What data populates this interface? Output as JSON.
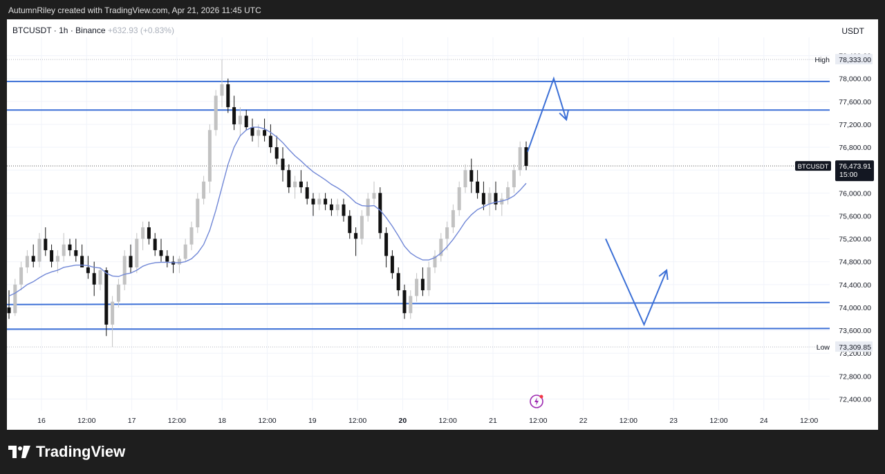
{
  "header": {
    "attribution": "AutumnRiley created with TradingView.com, Apr 21, 2026 11:45 UTC"
  },
  "legend": {
    "symbol": "BTCUSDT",
    "interval": "1h",
    "exchange": "Binance",
    "change": "+632.93 (+0.83%)"
  },
  "footer": {
    "brand": "TradingView"
  },
  "chart_data": {
    "type": "candlestick",
    "symbol": "BTCUSDT",
    "unit": "USDT",
    "ylim": [
      72200,
      78600
    ],
    "y_ticks": [
      "78,400.00",
      "78,000.00",
      "77,600.00",
      "77,200.00",
      "76,800.00",
      "76,400.00",
      "76,000.00",
      "75,600.00",
      "75,200.00",
      "74,800.00",
      "74,400.00",
      "74,000.00",
      "73,600.00",
      "73,200.00",
      "72,800.00",
      "72,400.00"
    ],
    "x_ticks": [
      {
        "label": "16",
        "bold": false
      },
      {
        "label": "12:00",
        "bold": false
      },
      {
        "label": "17",
        "bold": false
      },
      {
        "label": "12:00",
        "bold": false
      },
      {
        "label": "18",
        "bold": false
      },
      {
        "label": "12:00",
        "bold": false
      },
      {
        "label": "19",
        "bold": false
      },
      {
        "label": "12:00",
        "bold": false
      },
      {
        "label": "20",
        "bold": true
      },
      {
        "label": "12:00",
        "bold": false
      },
      {
        "label": "21",
        "bold": false
      },
      {
        "label": "12:00",
        "bold": false
      },
      {
        "label": "22",
        "bold": false
      },
      {
        "label": "12:00",
        "bold": false
      },
      {
        "label": "23",
        "bold": false
      },
      {
        "label": "12:00",
        "bold": false
      },
      {
        "label": "24",
        "bold": false
      },
      {
        "label": "12:00",
        "bold": false
      }
    ],
    "high": {
      "label": "High",
      "value": "78,333.00"
    },
    "low": {
      "label": "Low",
      "value": "73,309.85"
    },
    "last_price": {
      "symbol": "BTCUSDT",
      "value": "76,473.91",
      "countdown": "15:00"
    },
    "horizontal_levels": [
      77950,
      77450,
      74050,
      73620
    ],
    "projection_up": [
      [
        76720,
        0
      ],
      [
        78000,
        0.58
      ],
      [
        77280,
        0.86
      ]
    ],
    "projection_down": [
      [
        75200,
        0
      ],
      [
        73700,
        0.85
      ],
      [
        74650,
        1.35
      ]
    ],
    "colors": {
      "line": "#3b6fd6",
      "ma": "#6f86d6",
      "bull": "#c2c2c2",
      "bear": "#111111",
      "grid": "#f0f3fa"
    },
    "candles": [
      [
        74000,
        74300,
        73800,
        73900
      ],
      [
        73900,
        74500,
        73850,
        74400
      ],
      [
        74400,
        74800,
        74300,
        74700
      ],
      [
        74700,
        75000,
        74600,
        74900
      ],
      [
        74900,
        75100,
        74700,
        74800
      ],
      [
        74800,
        75300,
        74700,
        75200
      ],
      [
        75200,
        75400,
        74900,
        75000
      ],
      [
        75000,
        75100,
        74700,
        74800
      ],
      [
        74800,
        75000,
        74600,
        74900
      ],
      [
        74900,
        75300,
        74800,
        75100
      ],
      [
        75100,
        75200,
        74900,
        75000
      ],
      [
        75000,
        75200,
        74800,
        74900
      ],
      [
        74900,
        75100,
        74700,
        74700
      ],
      [
        74700,
        74900,
        74500,
        74600
      ],
      [
        74600,
        74800,
        74200,
        74400
      ],
      [
        74400,
        74700,
        74300,
        74650
      ],
      [
        74650,
        74700,
        73500,
        73700
      ],
      [
        73700,
        74200,
        73310,
        74100
      ],
      [
        74100,
        74500,
        74000,
        74400
      ],
      [
        74400,
        75000,
        74300,
        74900
      ],
      [
        74900,
        75100,
        74600,
        74700
      ],
      [
        74700,
        75300,
        74600,
        75200
      ],
      [
        75200,
        75500,
        75000,
        75400
      ],
      [
        75400,
        75500,
        75100,
        75200
      ],
      [
        75200,
        75300,
        74900,
        75000
      ],
      [
        75000,
        75200,
        74800,
        74900
      ],
      [
        74900,
        75000,
        74700,
        74800
      ],
      [
        74800,
        74900,
        74600,
        74750
      ],
      [
        74750,
        74900,
        74600,
        74850
      ],
      [
        74850,
        75200,
        74800,
        75100
      ],
      [
        75100,
        75500,
        75000,
        75400
      ],
      [
        75400,
        76000,
        75300,
        75900
      ],
      [
        75900,
        76300,
        75800,
        76200
      ],
      [
        76200,
        77200,
        76000,
        77100
      ],
      [
        77100,
        77800,
        77000,
        77700
      ],
      [
        77700,
        78333,
        77500,
        77900
      ],
      [
        77900,
        78000,
        77400,
        77500
      ],
      [
        77500,
        77700,
        77100,
        77200
      ],
      [
        77200,
        77500,
        77000,
        77350
      ],
      [
        77350,
        77450,
        77100,
        77150
      ],
      [
        77150,
        77300,
        76900,
        77000
      ],
      [
        77000,
        77200,
        76800,
        77100
      ],
      [
        77100,
        77300,
        76900,
        77000
      ],
      [
        77000,
        77200,
        76700,
        76800
      ],
      [
        76800,
        77000,
        76500,
        76600
      ],
      [
        76600,
        76800,
        76200,
        76400
      ],
      [
        76400,
        76500,
        76000,
        76100
      ],
      [
        76100,
        76300,
        75900,
        76200
      ],
      [
        76200,
        76400,
        76000,
        76100
      ],
      [
        76100,
        76200,
        75800,
        75900
      ],
      [
        75900,
        76000,
        75600,
        75800
      ],
      [
        75800,
        76000,
        75700,
        75900
      ],
      [
        75900,
        76000,
        75700,
        75800
      ],
      [
        75800,
        75900,
        75600,
        75700
      ],
      [
        75700,
        75900,
        75600,
        75800
      ],
      [
        75800,
        75900,
        75500,
        75600
      ],
      [
        75600,
        75700,
        75200,
        75300
      ],
      [
        75300,
        75400,
        74900,
        75200
      ],
      [
        75200,
        75700,
        75100,
        75600
      ],
      [
        75600,
        76000,
        75500,
        75900
      ],
      [
        75900,
        76200,
        75800,
        76000
      ],
      [
        76000,
        76100,
        75200,
        75300
      ],
      [
        75300,
        75400,
        74700,
        74900
      ],
      [
        74900,
        75000,
        74500,
        74600
      ],
      [
        74600,
        74700,
        74200,
        74300
      ],
      [
        74300,
        74400,
        73800,
        73900
      ],
      [
        73900,
        74300,
        73800,
        74200
      ],
      [
        74200,
        74600,
        74100,
        74500
      ],
      [
        74500,
        74700,
        74200,
        74300
      ],
      [
        74300,
        74800,
        74200,
        74700
      ],
      [
        74700,
        75000,
        74600,
        74900
      ],
      [
        74900,
        75300,
        74800,
        75200
      ],
      [
        75200,
        75500,
        75000,
        75400
      ],
      [
        75400,
        75800,
        75300,
        75700
      ],
      [
        75700,
        76200,
        75600,
        76100
      ],
      [
        76100,
        76500,
        76000,
        76400
      ],
      [
        76400,
        76600,
        76000,
        76200
      ],
      [
        76200,
        76400,
        75900,
        76000
      ],
      [
        76000,
        76200,
        75700,
        75800
      ],
      [
        75800,
        76100,
        75600,
        76000
      ],
      [
        76000,
        76200,
        75700,
        75800
      ],
      [
        75800,
        76000,
        75600,
        75900
      ],
      [
        75900,
        76200,
        75800,
        76100
      ],
      [
        76100,
        76500,
        76000,
        76400
      ],
      [
        76400,
        76900,
        76300,
        76800
      ],
      [
        76800,
        76900,
        76400,
        76474
      ]
    ],
    "ma": [
      74200,
      74250,
      74320,
      74400,
      74450,
      74520,
      74580,
      74620,
      74650,
      74700,
      74720,
      74740,
      74740,
      74730,
      74700,
      74690,
      74600,
      74550,
      74540,
      74580,
      74600,
      74650,
      74720,
      74760,
      74780,
      74790,
      74790,
      74780,
      74780,
      74800,
      74850,
      74950,
      75100,
      75350,
      75700,
      76100,
      76500,
      76800,
      77000,
      77100,
      77150,
      77150,
      77120,
      77060,
      76980,
      76880,
      76760,
      76650,
      76560,
      76460,
      76370,
      76300,
      76230,
      76150,
      76090,
      76020,
      75930,
      75830,
      75780,
      75770,
      75780,
      75700,
      75570,
      75420,
      75250,
      75070,
      74950,
      74880,
      74830,
      74830,
      74870,
      74950,
      75060,
      75190,
      75340,
      75500,
      75620,
      75710,
      75760,
      75810,
      75840,
      75860,
      75890,
      75950,
      76050,
      76170
    ]
  }
}
